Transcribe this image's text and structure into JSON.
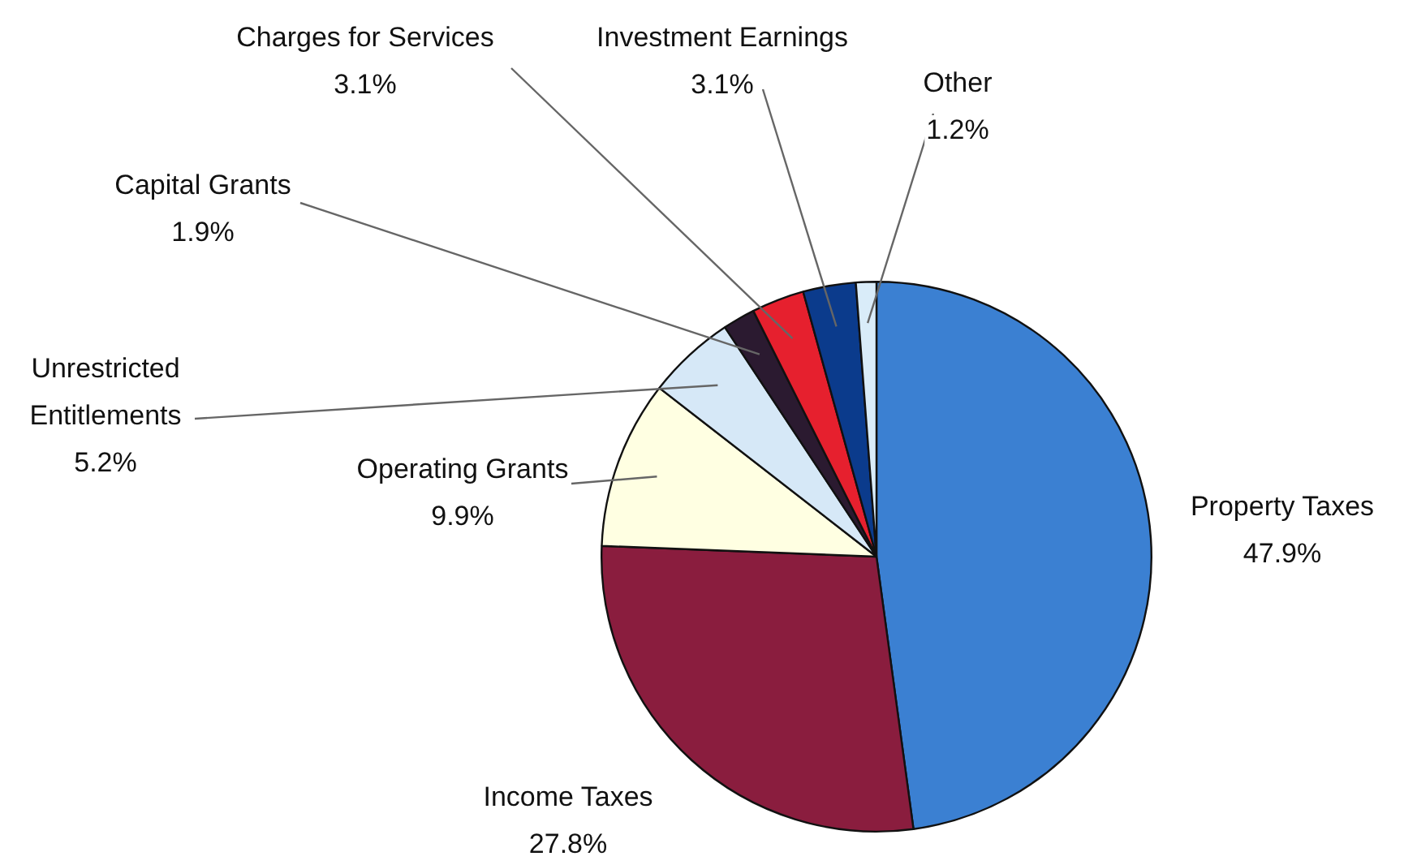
{
  "chart_data": {
    "type": "pie",
    "categories": [
      "Property Taxes",
      "Income Taxes",
      "Operating Grants",
      "Unrestricted Entitlements",
      "Capital Grants",
      "Charges for Services",
      "Investment Earnings",
      "Other"
    ],
    "values": [
      47.9,
      27.8,
      9.9,
      5.2,
      1.9,
      3.1,
      3.1,
      1.2
    ],
    "value_labels": [
      "47.9%",
      "27.8%",
      "9.9%",
      "5.2%",
      "1.9%",
      "3.1%",
      "3.1%",
      "1.2%"
    ],
    "colors": [
      "#3b80d2",
      "#8a1d3e",
      "#ffffe2",
      "#d6e8f7",
      "#2b1a30",
      "#e6202e",
      "#0b3b8c",
      "#d9ecf9"
    ],
    "legend": false
  }
}
